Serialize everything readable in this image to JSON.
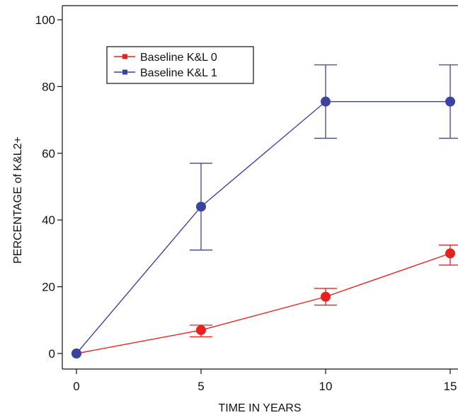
{
  "chart_data": {
    "type": "line",
    "title": "",
    "xlabel": "TIME IN YEARS",
    "ylabel": "PERCENTAGE of K&L2+",
    "x": [
      0,
      5,
      10,
      15
    ],
    "xticks": [
      "0",
      "5",
      "10",
      "15"
    ],
    "yticks": [
      "0",
      "20",
      "40",
      "60",
      "80",
      "100"
    ],
    "xlim": [
      -1,
      15.5
    ],
    "ylim": [
      -3,
      103
    ],
    "grid": false,
    "legend_position": "top-left",
    "series": [
      {
        "name": "Baseline K&L 0",
        "color": "#e8201e",
        "values": [
          0,
          7,
          17,
          30
        ],
        "error_low": [
          0,
          5,
          14.5,
          26.5
        ],
        "error_high": [
          0,
          8.5,
          19.5,
          32.5
        ]
      },
      {
        "name": "Baseline K&L 1",
        "color": "#3b43a0",
        "values": [
          0,
          44,
          75.5,
          75.5
        ],
        "error_low": [
          0,
          31,
          64.5,
          64.5
        ],
        "error_high": [
          0,
          57,
          86.5,
          86.5
        ]
      }
    ]
  }
}
